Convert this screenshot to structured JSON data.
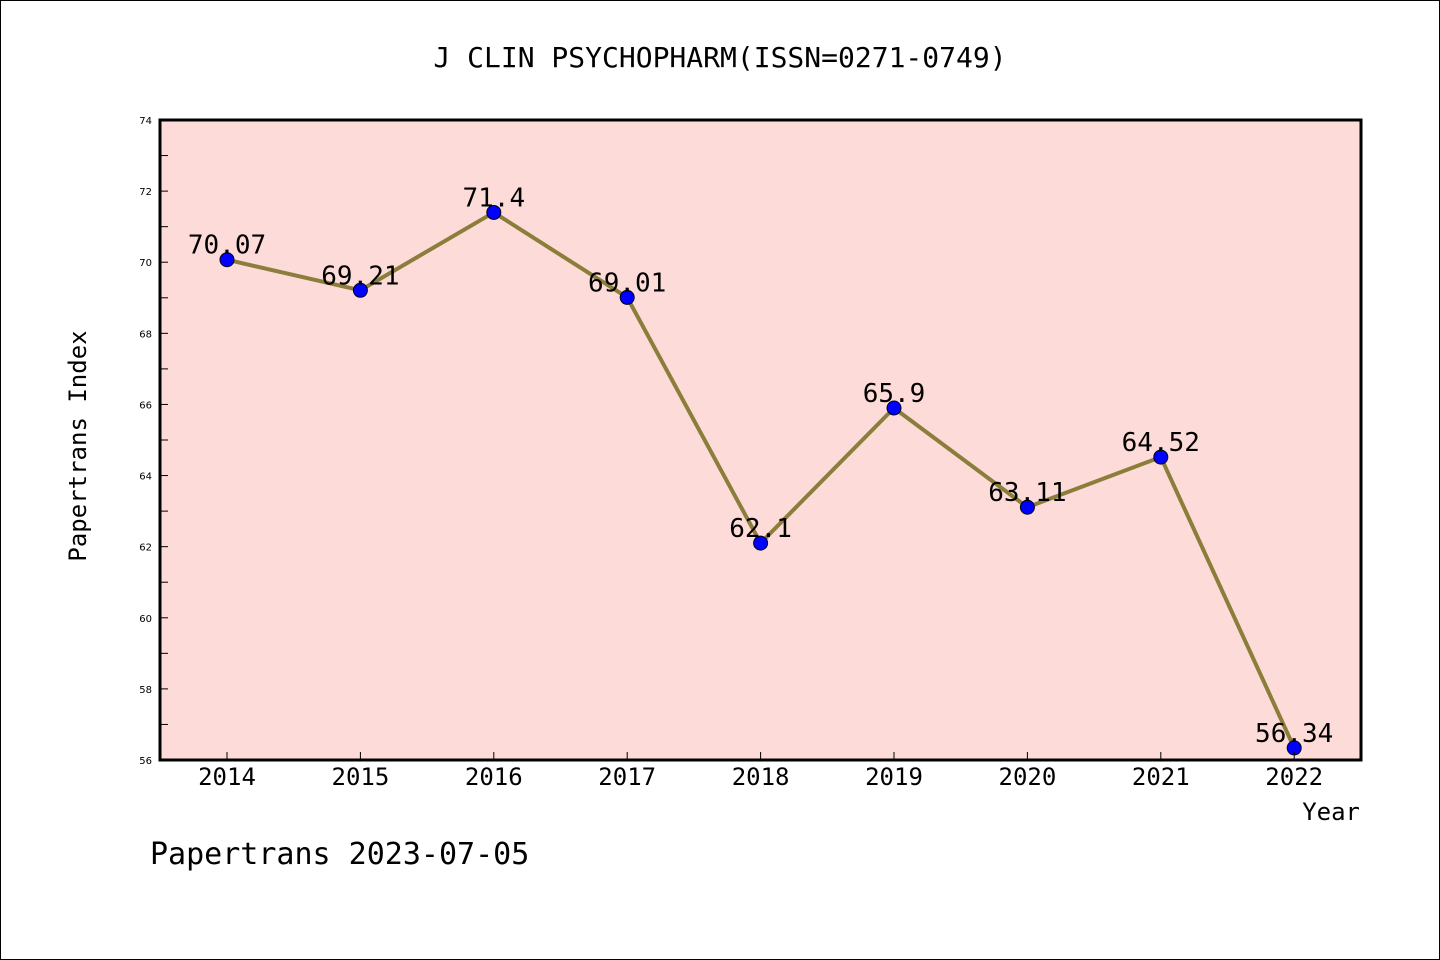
{
  "chart_data": {
    "type": "line",
    "title": "J CLIN PSYCHOPHARM(ISSN=0271-0749)",
    "xlabel": "Year",
    "ylabel": "Papertrans Index",
    "categories": [
      "2014",
      "2015",
      "2016",
      "2017",
      "2018",
      "2019",
      "2020",
      "2021",
      "2022"
    ],
    "values": [
      70.07,
      69.21,
      71.4,
      69.01,
      62.1,
      65.9,
      63.11,
      64.52,
      56.34
    ],
    "value_labels": [
      "70.07",
      "69.21",
      "71.4",
      "69.01",
      "62.1",
      "65.9",
      "63.11",
      "64.52",
      "56.34"
    ],
    "ylim": [
      56,
      74
    ],
    "yticks": [
      56,
      58,
      60,
      62,
      64,
      66,
      68,
      70,
      72,
      74
    ],
    "grid": false,
    "colors": {
      "plot_background": "#fddbd8",
      "line": "#8b7d3a",
      "marker": "#0000ff"
    }
  },
  "footer": "Papertrans 2023-07-05"
}
